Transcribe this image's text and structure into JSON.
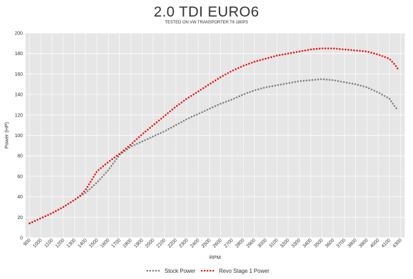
{
  "chart_data": {
    "type": "line",
    "title": "2.0 TDI EURO6",
    "subtitle": "TESTED ON VW TRANSPORTER T6 180PS",
    "xlabel": "RPM",
    "ylabel": "Power (HP)",
    "ylim": [
      0,
      200
    ],
    "yticks": [
      0,
      20,
      40,
      60,
      80,
      100,
      120,
      140,
      160,
      180,
      200
    ],
    "xticks": [
      900,
      1000,
      1100,
      1200,
      1300,
      1400,
      1500,
      1600,
      1700,
      1800,
      1900,
      2000,
      2100,
      2200,
      2300,
      2400,
      2500,
      2600,
      2700,
      2800,
      2900,
      3000,
      3100,
      3200,
      3300,
      3400,
      3500,
      3600,
      3700,
      3800,
      3900,
      4000,
      4100,
      4300
    ],
    "xlim": [
      900,
      4300
    ],
    "grid": true,
    "legend_position": "bottom",
    "background": "#e6e6e6",
    "series": [
      {
        "name": "Stock Power",
        "color": "#808080",
        "style": "dotted",
        "x": [
          900,
          1000,
          1100,
          1200,
          1300,
          1400,
          1500,
          1600,
          1700,
          1800,
          1900,
          2000,
          2100,
          2200,
          2300,
          2400,
          2500,
          2600,
          2700,
          2800,
          2900,
          3000,
          3100,
          3200,
          3300,
          3400,
          3500,
          3600,
          3700,
          3800,
          3900,
          4000,
          4100,
          4150,
          4200,
          4250
        ],
        "y": [
          14,
          19,
          24,
          30,
          37,
          44,
          54,
          66,
          81,
          89,
          94,
          99,
          104,
          110,
          116,
          121,
          126,
          131,
          135,
          140,
          144,
          147,
          149,
          151,
          153,
          154,
          155,
          154,
          152,
          150,
          147,
          142,
          136,
          132,
          128,
          125
        ]
      },
      {
        "name": "Revo Stage 1 Power",
        "color": "#ee1111",
        "style": "dotted",
        "x": [
          900,
          1000,
          1100,
          1200,
          1300,
          1350,
          1400,
          1450,
          1500,
          1600,
          1700,
          1800,
          1900,
          2000,
          2100,
          2200,
          2300,
          2400,
          2500,
          2600,
          2700,
          2800,
          2900,
          3000,
          3100,
          3200,
          3300,
          3400,
          3500,
          3600,
          3700,
          3800,
          3900,
          4000,
          4100,
          4200,
          4250
        ],
        "y": [
          14,
          19,
          24,
          30,
          37,
          41,
          47,
          56,
          65,
          74,
          82,
          91,
          101,
          110,
          119,
          128,
          136,
          143,
          150,
          157,
          163,
          168,
          172,
          175,
          178,
          180,
          182,
          184,
          185,
          185,
          184,
          183,
          182,
          179,
          175,
          169,
          165
        ]
      }
    ]
  }
}
